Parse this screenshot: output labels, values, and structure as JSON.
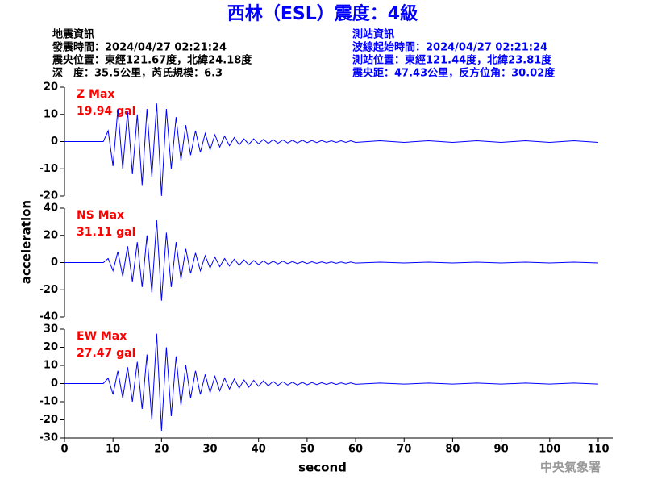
{
  "header": {
    "title": "西林（ESL）震度：4級",
    "left": [
      "地震資訊",
      "發震時間：2024/04/27 02:21:24",
      "震央位置：東經121.67度，北緯24.18度",
      "深　度：35.5公里，芮氏規模：6.3"
    ],
    "right": [
      "測站資訊",
      "波線起始時間：2024/04/27 02:21:24",
      "測站位置：東經121.44度，北緯23.81度",
      "震央距：47.43公里，反方位角：30.02度"
    ]
  },
  "axis_labels": {
    "x": "second",
    "y": "acceleration"
  },
  "footer": "中央氣象署",
  "chart_data": [
    {
      "type": "line",
      "label": "Z Max",
      "max_label": "19.94 gal",
      "x": [
        0,
        4,
        8,
        9,
        10,
        11,
        12,
        13,
        14,
        15,
        16,
        17,
        18,
        19,
        20,
        21,
        22,
        23,
        24,
        25,
        26,
        27,
        28,
        29,
        30,
        31,
        32,
        33,
        34,
        35,
        36,
        37,
        38,
        39,
        40,
        41,
        42,
        43,
        44,
        45,
        46,
        47,
        48,
        49,
        50,
        51,
        52,
        53,
        54,
        55,
        56,
        57,
        58,
        59,
        60,
        65,
        70,
        75,
        80,
        85,
        90,
        95,
        100,
        105,
        110
      ],
      "series": [
        {
          "color": "#0000ff",
          "values": [
            0,
            0,
            0,
            4,
            -9,
            12,
            -10,
            11,
            -12,
            10,
            -16,
            12,
            -13,
            14,
            -19.94,
            12,
            -10,
            9,
            -7,
            6,
            -5,
            4,
            -4,
            3,
            -3,
            2.5,
            -2,
            2,
            -1.5,
            1.5,
            -1.2,
            1,
            -1,
            1,
            -0.8,
            0.8,
            -0.7,
            0.7,
            -0.6,
            0.6,
            -0.5,
            0.5,
            -0.5,
            0.5,
            -0.4,
            0.4,
            -0.4,
            0.4,
            -0.3,
            0.3,
            -0.3,
            0.3,
            -0.3,
            0.3,
            -0.3,
            0.3,
            -0.3,
            0.3,
            -0.3,
            0.3,
            -0.3,
            0.3,
            -0.3,
            0.3,
            -0.3
          ]
        }
      ],
      "xlim": [
        0,
        113
      ],
      "ylim": [
        -20,
        20
      ],
      "yticks": [
        -20,
        -10,
        0,
        10,
        20
      ]
    },
    {
      "type": "line",
      "label": "NS Max",
      "max_label": "31.11 gal",
      "x": [
        0,
        4,
        8,
        9,
        10,
        11,
        12,
        13,
        14,
        15,
        16,
        17,
        18,
        19,
        20,
        21,
        22,
        23,
        24,
        25,
        26,
        27,
        28,
        29,
        30,
        31,
        32,
        33,
        34,
        35,
        36,
        37,
        38,
        39,
        40,
        41,
        42,
        43,
        44,
        45,
        46,
        47,
        48,
        49,
        50,
        51,
        52,
        53,
        54,
        55,
        56,
        57,
        58,
        59,
        60,
        65,
        70,
        75,
        80,
        85,
        90,
        95,
        100,
        105,
        110
      ],
      "series": [
        {
          "color": "#0000ff",
          "values": [
            0,
            0,
            0,
            3,
            -6,
            8,
            -10,
            12,
            -14,
            15,
            -18,
            20,
            -22,
            31.11,
            -28,
            22,
            -18,
            15,
            -12,
            10,
            -8,
            7,
            -6,
            5,
            -4,
            4,
            -3,
            3,
            -2.5,
            2.5,
            -2,
            2,
            -1.8,
            1.5,
            -1.5,
            1.2,
            -1.2,
            1,
            -1,
            1,
            -0.8,
            0.8,
            -0.8,
            0.7,
            -0.7,
            0.6,
            -0.6,
            0.5,
            -0.5,
            0.5,
            -0.5,
            0.4,
            -0.4,
            0.4,
            -0.4,
            0.3,
            -0.3,
            0.3,
            -0.3,
            0.3,
            -0.3,
            0.3,
            -0.3,
            0.3,
            -0.3
          ]
        }
      ],
      "xlim": [
        0,
        113
      ],
      "ylim": [
        -40,
        40
      ],
      "yticks": [
        -40,
        -20,
        0,
        20,
        40
      ]
    },
    {
      "type": "line",
      "label": "EW Max",
      "max_label": "27.47 gal",
      "x": [
        0,
        4,
        8,
        9,
        10,
        11,
        12,
        13,
        14,
        15,
        16,
        17,
        18,
        19,
        20,
        21,
        22,
        23,
        24,
        25,
        26,
        27,
        28,
        29,
        30,
        31,
        32,
        33,
        34,
        35,
        36,
        37,
        38,
        39,
        40,
        41,
        42,
        43,
        44,
        45,
        46,
        47,
        48,
        49,
        50,
        51,
        52,
        53,
        54,
        55,
        56,
        57,
        58,
        59,
        60,
        65,
        70,
        75,
        80,
        85,
        90,
        95,
        100,
        105,
        110
      ],
      "series": [
        {
          "color": "#0000ff",
          "values": [
            0,
            0,
            0,
            3,
            -6,
            7,
            -8,
            9,
            -10,
            12,
            -14,
            16,
            -20,
            27.47,
            -26,
            20,
            -18,
            15,
            -12,
            10,
            -8,
            7,
            -6,
            5,
            -5,
            4,
            -4,
            3,
            -3,
            2.5,
            -2.5,
            2,
            -2,
            1.8,
            -1.5,
            1.5,
            -1.2,
            1.2,
            -1,
            1,
            -0.8,
            0.8,
            -0.8,
            0.7,
            -0.7,
            0.6,
            -0.6,
            0.5,
            -0.5,
            0.5,
            -0.5,
            0.4,
            -0.4,
            0.4,
            -0.4,
            0.3,
            -0.3,
            0.3,
            -0.3,
            0.3,
            -0.3,
            0.3,
            -0.3,
            0.3,
            -0.3
          ]
        }
      ],
      "xlim": [
        0,
        113
      ],
      "ylim": [
        -30,
        30
      ],
      "yticks": [
        -30,
        -20,
        -10,
        0,
        10,
        20,
        30
      ],
      "xticks": [
        0,
        10,
        20,
        30,
        40,
        50,
        60,
        70,
        80,
        90,
        100,
        110
      ]
    }
  ]
}
